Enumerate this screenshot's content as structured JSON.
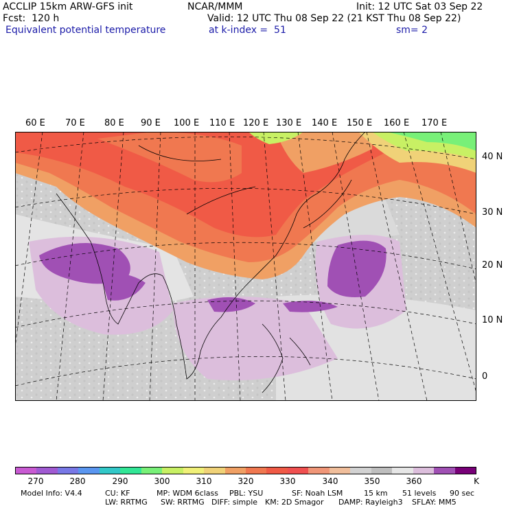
{
  "header": {
    "line1_left": "ACCLIP 15km ARW-GFS init",
    "line1_center": "NCAR/MMM",
    "line1_right": "Init: 12 UTC Sat 03 Sep 22",
    "line2_left": "Fcst:  120 h",
    "line2_right": "Valid: 12 UTC Thu 08 Sep 22 (21 KST Thu 08 Sep 22)",
    "line3_field": "Equivalent potential temperature",
    "line3_level": "at k-index =  51",
    "line3_smooth": "sm= 2"
  },
  "map": {
    "lon_labels": [
      "60 E",
      "70 E",
      "80 E",
      "90 E",
      "100 E",
      "110 E",
      "120 E",
      "130 E",
      "140 E",
      "150 E",
      "160 E",
      "170 E"
    ],
    "lat_labels": [
      "40 N",
      "30 N",
      "20 N",
      "10 N",
      "0"
    ]
  },
  "legend": {
    "unit": "K",
    "ticks": [
      "270",
      "280",
      "290",
      "300",
      "310",
      "320",
      "330",
      "340",
      "350",
      "360"
    ],
    "colors": [
      "#c85ad2",
      "#a05ad2",
      "#7878e6",
      "#5a96f0",
      "#32c8c8",
      "#32e696",
      "#78f078",
      "#c8f064",
      "#f0f078",
      "#f0d278",
      "#f0a064",
      "#f07850",
      "#f05a46",
      "#f05050",
      "#f09678",
      "#f0be9b",
      "#d2d2d2",
      "#bebebe",
      "#e6e6e6",
      "#dcbedc",
      "#a050b4",
      "#780078"
    ]
  },
  "model_info": {
    "line1": [
      "Model Info: V4.4",
      "CU: KF",
      "MP: WDM 6class",
      "PBL: YSU",
      "SF: Noah LSM",
      "15 km",
      "51 levels",
      "90 sec"
    ],
    "line2": [
      "LW: RRTMG",
      "SW: RRTMG",
      "DIFF: simple",
      "KM: 2D Smagor",
      "DAMP: Rayleigh3",
      "SFLAY: MM5"
    ]
  }
}
